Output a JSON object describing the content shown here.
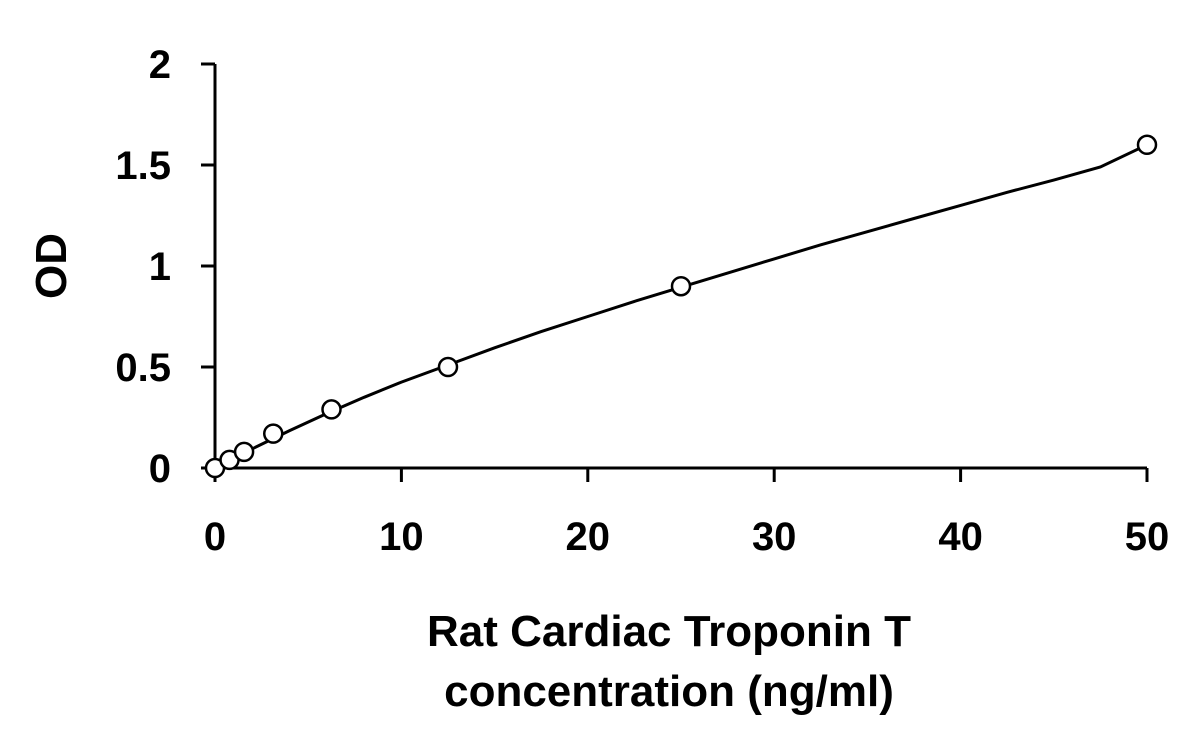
{
  "chart_data": {
    "type": "scatter",
    "title": "",
    "xlabel_lines": [
      "Rat Cardiac Troponin T",
      "concentration (ng/ml)"
    ],
    "ylabel": "OD",
    "xlim": [
      0,
      50
    ],
    "ylim": [
      0,
      2
    ],
    "xticks": [
      0,
      10,
      20,
      30,
      40,
      50
    ],
    "yticks": [
      0,
      0.5,
      1,
      1.5,
      2
    ],
    "xtick_labels": [
      "0",
      "10",
      "20",
      "30",
      "40",
      "50"
    ],
    "ytick_labels": [
      "0",
      "0.5",
      "1",
      "1.5",
      "2"
    ],
    "grid": false,
    "series": [
      {
        "marker": "open-circle",
        "trendline": "smooth-fit",
        "points": [
          {
            "x": 0,
            "y": 0.0
          },
          {
            "x": 0.78,
            "y": 0.04
          },
          {
            "x": 1.56,
            "y": 0.08
          },
          {
            "x": 3.125,
            "y": 0.17
          },
          {
            "x": 6.25,
            "y": 0.29
          },
          {
            "x": 12.5,
            "y": 0.5
          },
          {
            "x": 25,
            "y": 0.9
          },
          {
            "x": 50,
            "y": 1.6
          }
        ],
        "fit_curve": {
          "x": [
            0,
            2,
            4,
            6,
            8,
            10,
            12.5,
            15,
            17.5,
            20,
            22.5,
            25,
            27.5,
            30,
            32.5,
            35,
            37.5,
            40,
            42.5,
            45,
            47.5,
            50
          ],
          "y": [
            0.0,
            0.095,
            0.185,
            0.27,
            0.35,
            0.425,
            0.51,
            0.595,
            0.675,
            0.75,
            0.825,
            0.895,
            0.965,
            1.035,
            1.105,
            1.17,
            1.235,
            1.3,
            1.365,
            1.425,
            1.49,
            1.6
          ]
        }
      }
    ]
  }
}
